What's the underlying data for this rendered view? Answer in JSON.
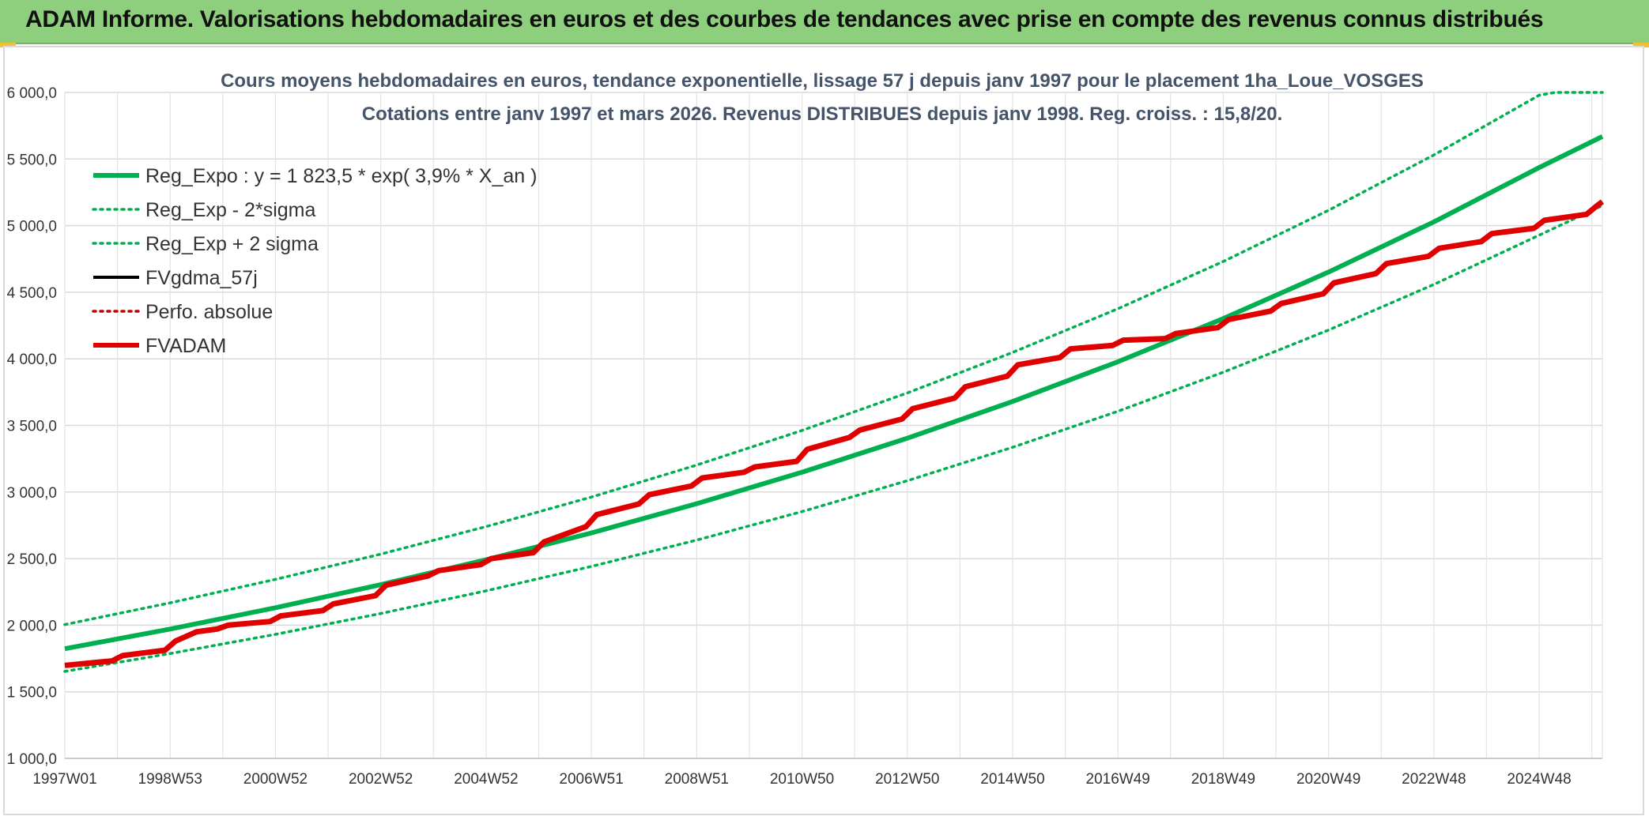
{
  "banner": {
    "title": "ADAM Informe. Valorisations hebdomadaires en euros et des courbes de tendances avec prise en compte des revenus connus distribués",
    "background": "#8dcf7c"
  },
  "chart_data": {
    "type": "line",
    "title": "Cours moyens hebdomadaires en euros, tendance exponentielle, lissage 57 j depuis janv 1997 pour le placement 1ha_Loue_VOSGES",
    "subtitle": "Cotations entre janv 1997 et mars 2026. Revenus DISTRIBUES depuis janv 1998. Reg. croiss. : 15,8/20.",
    "xlabel": "",
    "ylabel": "",
    "x_range": [
      1997.0,
      2026.2
    ],
    "ylim": [
      1000,
      6000
    ],
    "y_ticks": [
      "1 000,0",
      "1 500,0",
      "2 000,0",
      "2 500,0",
      "3 000,0",
      "3 500,0",
      "4 000,0",
      "4 500,0",
      "5 000,0",
      "5 500,0",
      "6 000,0"
    ],
    "x_tick_labels": [
      {
        "label": "1997W01",
        "x": 1997.0
      },
      {
        "label": "1998W53",
        "x": 1999.0
      },
      {
        "label": "2000W52",
        "x": 2001.0
      },
      {
        "label": "2002W52",
        "x": 2003.0
      },
      {
        "label": "2004W52",
        "x": 2005.0
      },
      {
        "label": "2006W51",
        "x": 2007.0
      },
      {
        "label": "2008W51",
        "x": 2009.0
      },
      {
        "label": "2010W50",
        "x": 2011.0
      },
      {
        "label": "2012W50",
        "x": 2013.0
      },
      {
        "label": "2014W50",
        "x": 2015.0
      },
      {
        "label": "2016W49",
        "x": 2017.0
      },
      {
        "label": "2018W49",
        "x": 2019.0
      },
      {
        "label": "2020W49",
        "x": 2021.0
      },
      {
        "label": "2022W48",
        "x": 2023.0
      },
      {
        "label": "2024W48",
        "x": 2025.0
      }
    ],
    "grid": true,
    "legend_position": "top-left",
    "series": [
      {
        "name": "Reg_Expo : y = 1 823,5 * exp( 3,9% *  X_an )",
        "color": "#00b050",
        "style": "solid-thick",
        "x": [
          1997,
          1999,
          2001,
          2003,
          2005,
          2007,
          2009,
          2011,
          2013,
          2015,
          2017,
          2019,
          2021,
          2023,
          2025,
          2026.2
        ],
        "values": [
          1823,
          1971,
          2131,
          2304,
          2491,
          2693,
          2912,
          3148,
          3404,
          3680,
          3978,
          4302,
          4651,
          5028,
          5436,
          5669
        ]
      },
      {
        "name": "Reg_Exp - 2*sigma",
        "color": "#00b050",
        "style": "dotted",
        "x": [
          1997,
          1999,
          2001,
          2003,
          2005,
          2007,
          2009,
          2011,
          2013,
          2015,
          2017,
          2019,
          2021,
          2023,
          2025,
          2026.2
        ],
        "values": [
          1653,
          1787,
          1931,
          2088,
          2258,
          2441,
          2639,
          2853,
          3085,
          3336,
          3606,
          3899,
          4216,
          4558,
          4928,
          5150
        ]
      },
      {
        "name": "Reg_Exp + 2 sigma",
        "color": "#00b050",
        "style": "dotted",
        "x": [
          1997,
          1999,
          2001,
          2003,
          2005,
          2007,
          2009,
          2011,
          2013,
          2015,
          2017,
          2019,
          2021,
          2023,
          2025,
          2025.3,
          2026.2
        ],
        "values": [
          2005,
          2168,
          2344,
          2534,
          2740,
          2962,
          3202,
          3462,
          3744,
          4048,
          4376,
          4731,
          5115,
          5530,
          5979,
          6000,
          6000
        ]
      },
      {
        "name": "FVgdma_57j",
        "color": "#000000",
        "style": "solid-medium",
        "x": [
          1997.0,
          1997.9,
          1998.1,
          1998.9,
          1999.1,
          1999.5,
          1999.9,
          2000.1,
          2000.9,
          2001.1,
          2001.9,
          2002.1,
          2002.9,
          2003.1,
          2003.9,
          2004.1,
          2004.9,
          2005.1,
          2005.9,
          2006.1,
          2006.9,
          2007.1,
          2007.9,
          2008.1,
          2008.9,
          2009.1,
          2009.9,
          2010.1,
          2010.9,
          2011.1,
          2011.9,
          2012.1,
          2012.9,
          2013.1,
          2013.9,
          2014.1,
          2014.9,
          2015.1,
          2015.9,
          2016.1,
          2016.9,
          2017.1,
          2017.9,
          2018.1,
          2018.9,
          2019.1,
          2019.9,
          2020.1,
          2020.9,
          2021.1,
          2021.9,
          2022.1,
          2022.9,
          2023.1,
          2023.9,
          2024.1,
          2024.9,
          2025.1,
          2025.9,
          2026.1,
          2026.2
        ],
        "values": [
          1698,
          1732,
          1772,
          1812,
          1880,
          1950,
          1972,
          2000,
          2028,
          2070,
          2110,
          2160,
          2222,
          2300,
          2370,
          2410,
          2455,
          2500,
          2545,
          2625,
          2740,
          2830,
          2910,
          2980,
          3045,
          3105,
          3148,
          3188,
          3230,
          3320,
          3410,
          3465,
          3548,
          3625,
          3705,
          3790,
          3870,
          3955,
          4010,
          4075,
          4100,
          4140,
          4152,
          4190,
          4235,
          4295,
          4358,
          4415,
          4488,
          4570,
          4640,
          4715,
          4770,
          4830,
          4880,
          4940,
          4980,
          5040,
          5085,
          5150,
          5180
        ]
      },
      {
        "name": "Perfo. absolue",
        "color": "#c00000",
        "style": "dotted",
        "x": [],
        "values": []
      },
      {
        "name": "FVADAM",
        "color": "#e00000",
        "style": "solid-thick",
        "x": [
          1997.0,
          1997.9,
          1998.1,
          1998.9,
          1999.1,
          1999.5,
          1999.9,
          2000.1,
          2000.9,
          2001.1,
          2001.9,
          2002.1,
          2002.9,
          2003.1,
          2003.9,
          2004.1,
          2004.9,
          2005.1,
          2005.9,
          2006.1,
          2006.9,
          2007.1,
          2007.9,
          2008.1,
          2008.9,
          2009.1,
          2009.9,
          2010.1,
          2010.9,
          2011.1,
          2011.9,
          2012.1,
          2012.9,
          2013.1,
          2013.9,
          2014.1,
          2014.9,
          2015.1,
          2015.9,
          2016.1,
          2016.9,
          2017.1,
          2017.9,
          2018.1,
          2018.9,
          2019.1,
          2019.9,
          2020.1,
          2020.9,
          2021.1,
          2021.9,
          2022.1,
          2022.9,
          2023.1,
          2023.9,
          2024.1,
          2024.9,
          2025.1,
          2025.9,
          2026.1,
          2026.2
        ],
        "values": [
          1698,
          1732,
          1772,
          1812,
          1880,
          1950,
          1972,
          2000,
          2028,
          2070,
          2110,
          2160,
          2222,
          2300,
          2370,
          2410,
          2455,
          2500,
          2545,
          2625,
          2740,
          2830,
          2910,
          2980,
          3045,
          3105,
          3148,
          3188,
          3230,
          3320,
          3410,
          3465,
          3548,
          3625,
          3705,
          3790,
          3870,
          3955,
          4010,
          4075,
          4100,
          4140,
          4152,
          4190,
          4235,
          4295,
          4358,
          4415,
          4488,
          4570,
          4640,
          4715,
          4770,
          4830,
          4880,
          4940,
          4980,
          5040,
          5085,
          5150,
          5180
        ]
      }
    ]
  }
}
